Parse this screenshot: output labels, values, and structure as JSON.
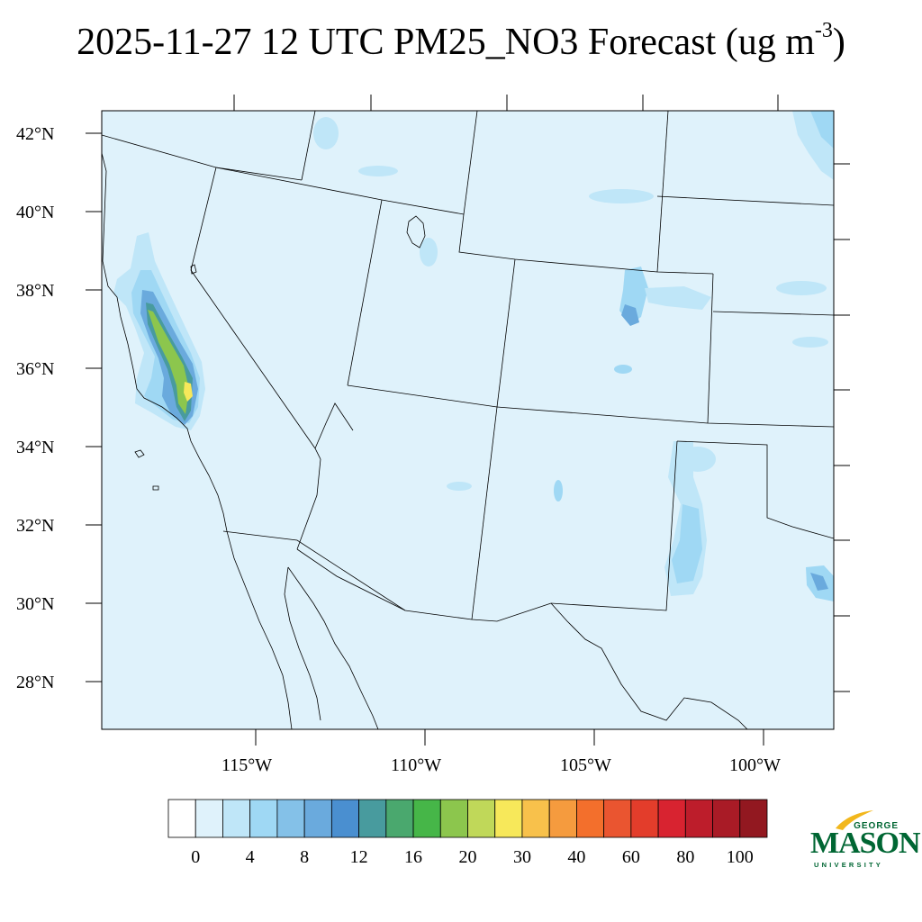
{
  "title": {
    "main": "2025-11-27 12 UTC PM25_NO3 Forecast (ug m",
    "superscript": "-3",
    "close": ")"
  },
  "map": {
    "lon_range": [
      -119.6,
      -97.9
    ],
    "lat_range": [
      26.8,
      42.6
    ],
    "background_color": "#dff2fb",
    "lat_ticks": [
      "42°N",
      "40°N",
      "38°N",
      "36°N",
      "34°N",
      "32°N",
      "30°N",
      "28°N"
    ],
    "lon_ticks": [
      "115°W",
      "110°W",
      "105°W",
      "100°W"
    ]
  },
  "colorbar": {
    "colors": [
      "#ffffff",
      "#dff2fb",
      "#bfe6f8",
      "#9fd8f4",
      "#84c1e8",
      "#6aaadd",
      "#4a8fd0",
      "#489b9e",
      "#4aa86e",
      "#46b648",
      "#8cc64d",
      "#c0d859",
      "#f7e85a",
      "#f8c14b",
      "#f59b3e",
      "#f36f2c",
      "#ea5530",
      "#e33d2b",
      "#d82330",
      "#bd1d2b",
      "#a91b26",
      "#921820"
    ],
    "labels": [
      "0",
      "4",
      "8",
      "12",
      "16",
      "20",
      "30",
      "40",
      "60",
      "80",
      "100"
    ]
  },
  "logo": {
    "line1": "GEORGE",
    "line2": "MASON",
    "line3": "UNIVERSITY",
    "color": "#006633",
    "accent_color": "#f2b71c"
  }
}
